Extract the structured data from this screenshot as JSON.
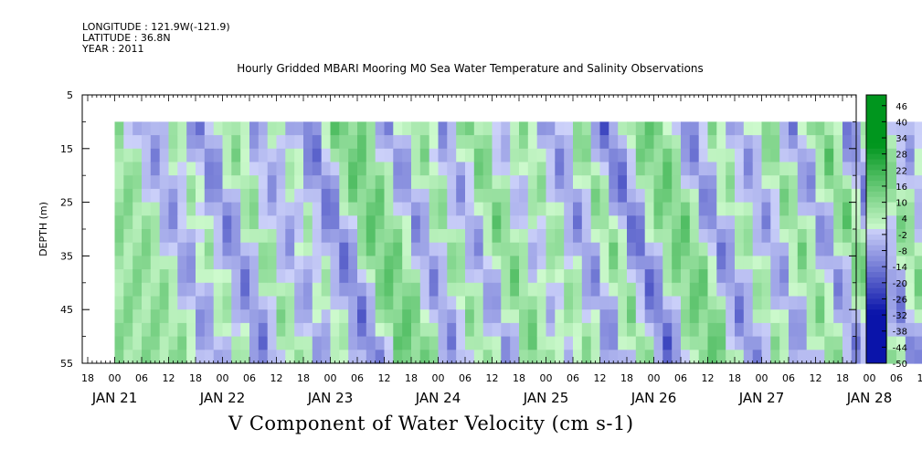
{
  "header": {
    "longitude": "LONGITUDE : 121.9W(-121.9)",
    "latitude": "LATITUDE : 36.8N",
    "year": "YEAR : 2011",
    "title": "Hourly Gridded MBARI Mooring M0 Sea Water Temperature and Salinity Observations"
  },
  "footer": {
    "variable_title": "V Component of Water Velocity (cm s-1)"
  },
  "chart_data": {
    "type": "heatmap",
    "title": "Hourly Gridded MBARI Mooring M0 Sea Water Temperature and Salinity Observations",
    "xlabel": "",
    "ylabel": "DEPTH (m)",
    "variable": "V Component of Water Velocity (cm s-1)",
    "y_ticks": [
      5,
      15,
      25,
      35,
      45,
      55
    ],
    "ylim": [
      5,
      55
    ],
    "y_inverted": true,
    "x_hour_ticks": [
      "18",
      "00",
      "06",
      "12",
      "18",
      "00",
      "06",
      "12",
      "18",
      "00",
      "06",
      "12",
      "18",
      "00",
      "06",
      "12",
      "18",
      "00",
      "06",
      "12",
      "18",
      "00",
      "06",
      "12",
      "18",
      "00",
      "06",
      "12",
      "18",
      "00",
      "06",
      "12",
      "18"
    ],
    "x_day_labels": [
      "JAN 21",
      "JAN 22",
      "JAN 23",
      "JAN 24",
      "JAN 25",
      "JAN 26",
      "JAN 27",
      "JAN 28"
    ],
    "data_depth_range": [
      10,
      55
    ],
    "colorbar": {
      "min": -50,
      "max": 50,
      "step": 2,
      "tick_labels": [
        "46",
        "40",
        "34",
        "28",
        "22",
        "16",
        "10",
        "4",
        "-2",
        "-8",
        "-14",
        "-20",
        "-26",
        "-32",
        "-38",
        "-44",
        "-50"
      ],
      "negative_color": "#0000aa",
      "positive_color": "#00aa22"
    },
    "grid": false,
    "approx_velocity_pattern": [
      {
        "time": "JAN 21 00",
        "v": 8
      },
      {
        "time": "JAN 21 06",
        "v": -10
      },
      {
        "time": "JAN 21 12",
        "v": 6
      },
      {
        "time": "JAN 21 18",
        "v": -14
      },
      {
        "time": "JAN 22 00",
        "v": 10
      },
      {
        "time": "JAN 22 06",
        "v": -8
      },
      {
        "time": "JAN 22 12",
        "v": 4
      },
      {
        "time": "JAN 22 18",
        "v": -16
      },
      {
        "time": "JAN 23 00",
        "v": 14
      },
      {
        "time": "JAN 23 06",
        "v": 12
      },
      {
        "time": "JAN 23 12",
        "v": -12
      },
      {
        "time": "JAN 23 18",
        "v": 10
      },
      {
        "time": "JAN 24 00",
        "v": -10
      },
      {
        "time": "JAN 24 06",
        "v": 14
      },
      {
        "time": "JAN 24 12",
        "v": -4
      },
      {
        "time": "JAN 24 18",
        "v": 8
      },
      {
        "time": "JAN 25 00",
        "v": -12
      },
      {
        "time": "JAN 25 06",
        "v": 12
      },
      {
        "time": "JAN 25 12",
        "v": -18
      },
      {
        "time": "JAN 25 18",
        "v": 10
      },
      {
        "time": "JAN 26 00",
        "v": 14
      },
      {
        "time": "JAN 26 06",
        "v": -14
      },
      {
        "time": "JAN 26 12",
        "v": 8
      },
      {
        "time": "JAN 26 18",
        "v": -10
      },
      {
        "time": "JAN 27 00",
        "v": 12
      },
      {
        "time": "JAN 27 06",
        "v": -12
      },
      {
        "time": "JAN 27 12",
        "v": 16
      },
      {
        "time": "JAN 27 18",
        "v": -14
      },
      {
        "time": "JAN 28 00",
        "v": 12
      },
      {
        "time": "JAN 28 06",
        "v": -8
      },
      {
        "time": "JAN 28 12",
        "v": 10
      }
    ]
  }
}
